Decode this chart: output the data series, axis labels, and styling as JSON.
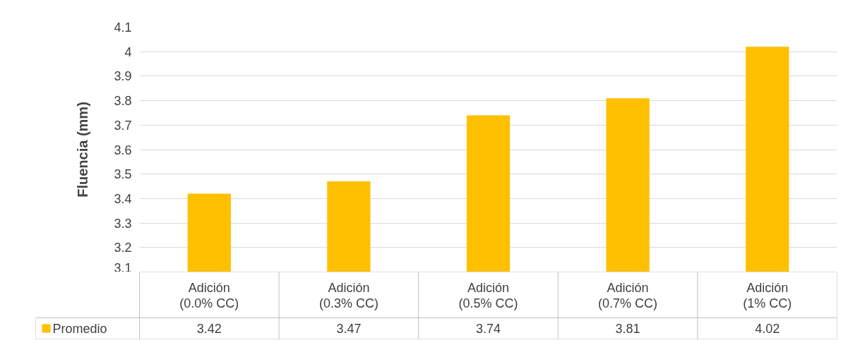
{
  "chart_data": {
    "type": "bar",
    "ylabel": "Fluencia (mm)",
    "categories": [
      "Adición (0.0% CC)",
      "Adición (0.3% CC)",
      "Adición (0.5% CC)",
      "Adición (0.7% CC)",
      "Adición (1% CC)"
    ],
    "series": [
      {
        "name": "Promedio",
        "color": "#ffc000",
        "values": [
          3.42,
          3.47,
          3.74,
          3.81,
          4.02
        ]
      }
    ],
    "ylim": [
      3.1,
      4.1
    ],
    "yticks": [
      3.1,
      3.2,
      3.3,
      3.4,
      3.5,
      3.6,
      3.7,
      3.8,
      3.9,
      4,
      4.1
    ],
    "grid": "y",
    "legend": "bottom",
    "data_labels": true
  }
}
